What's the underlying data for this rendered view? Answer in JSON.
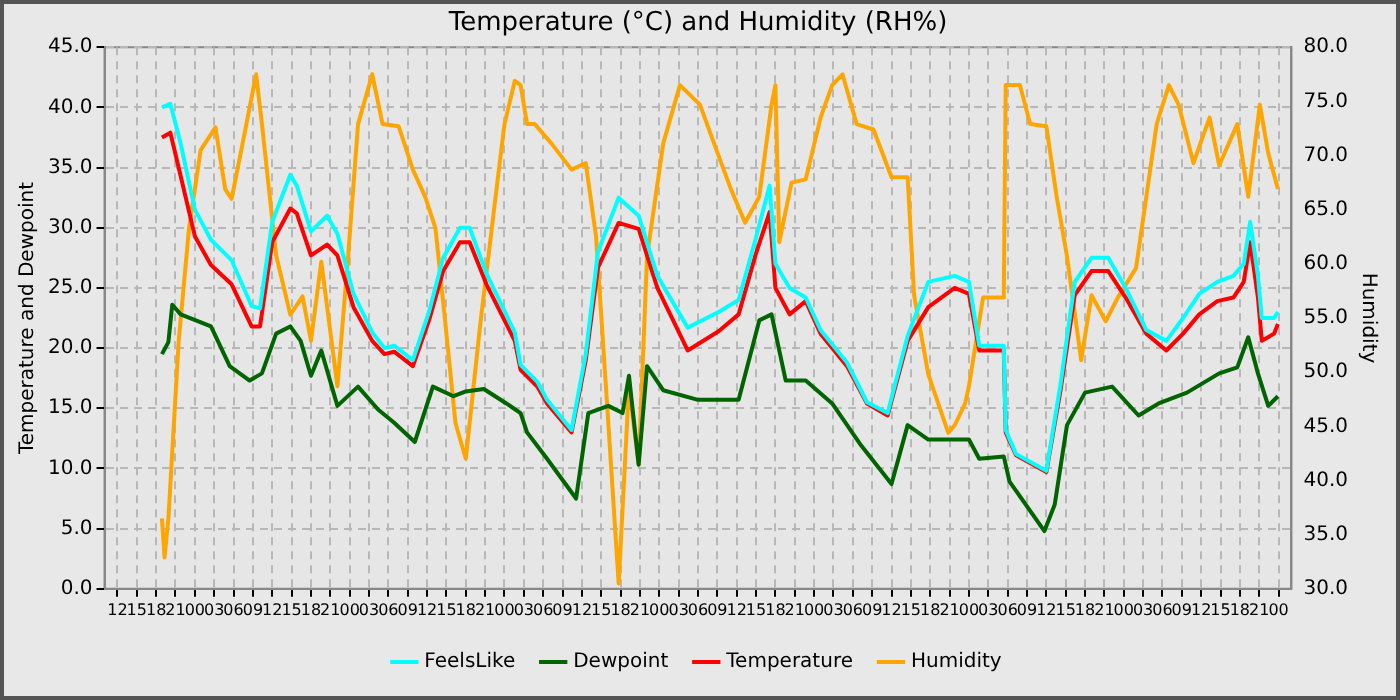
{
  "chart_data": {
    "type": "line",
    "title": "Temperature (°C) and Humidity (RH%)",
    "ylabel": "Temperature and Dewpoint",
    "y2label": "Humidity",
    "x": [
      18.9,
      20.2,
      21.8,
      24.0,
      26.5,
      29.7,
      32.8,
      34.1,
      36.0,
      38.8,
      39.8,
      42.0,
      44.5,
      46.1,
      48.6,
      51.5,
      53.4,
      54.9,
      57.8,
      60.3,
      62.5,
      65.1,
      66.6,
      69.2,
      73.6,
      74.5,
      77.1,
      78.6,
      82.4,
      84.6,
      86.5,
      89.7,
      92.8,
      95.7,
      100.4,
      105.2,
      108.3,
      110.9,
      113.1,
      114.0,
      116.2,
      118.7,
      121.0,
      125.1,
      128.2,
      131.4,
      134.5,
      137.7,
      141.8,
      144.0,
      145.6,
      149.4,
      149.7,
      151.3,
      156.0,
      158.2,
      160.4,
      163.0,
      165.6,
      168.3,
      171.5,
      174.6,
      177.2,
      179.7,
      182.5,
      185.0,
      186.6,
      187.6,
      188.8,
      189.4,
      191.3,
      191.9
    ],
    "series": [
      {
        "name": "FeelsLike",
        "color": "#00ffff",
        "values": [
          40.0,
          40.3,
          37,
          31.5,
          29,
          27.3,
          23.5,
          23.3,
          30.5,
          34.4,
          33.5,
          29.7,
          31,
          29.5,
          24.5,
          21.3,
          20,
          20.2,
          19,
          23,
          27.5,
          30,
          30,
          26.2,
          21.3,
          18.6,
          17.2,
          15.7,
          13.2,
          19.5,
          28,
          32.5,
          31,
          26,
          21.7,
          23,
          24,
          29,
          33.5,
          27,
          25,
          24.2,
          21.5,
          18.8,
          15.5,
          14.6,
          21,
          25.5,
          26,
          25.5,
          20.2,
          20.2,
          13.2,
          11.2,
          9.8,
          17,
          25.5,
          27.5,
          27.5,
          25,
          21.5,
          20.6,
          22.5,
          24.5,
          25.5,
          26,
          27,
          30.5,
          26,
          22.5,
          22.5,
          23
        ]
      },
      {
        "name": "Dewpoint",
        "color": "#006400",
        "x": [
          18.9,
          19.9,
          20.5,
          21.8,
          26.5,
          29.4,
          32.5,
          34.4,
          36.6,
          38.8,
          40.4,
          42.0,
          43.6,
          46.1,
          49.3,
          52.4,
          54.9,
          58.1,
          60.9,
          64.1,
          66.0,
          68.8,
          72.3,
          74.5,
          75.5,
          78.6,
          83.1,
          85.0,
          88.1,
          90.3,
          91.3,
          92.8,
          94.1,
          96.6,
          102.0,
          108.3,
          111.5,
          113.4,
          115.6,
          118.7,
          122.8,
          127.3,
          132.0,
          134.5,
          137.7,
          144.0,
          145.6,
          149.4,
          150.3,
          155.7,
          157.3,
          159.2,
          162.0,
          166.2,
          170.3,
          173.4,
          177.8,
          182.8,
          185.6,
          187.3,
          188.8,
          190.4,
          191.9
        ],
        "values": [
          19.5,
          20.5,
          23.6,
          22.8,
          21.8,
          18.5,
          17.3,
          17.9,
          21.2,
          21.8,
          20.6,
          17.7,
          19.8,
          15.2,
          16.8,
          14.9,
          13.8,
          12.2,
          16.8,
          16.0,
          16.4,
          16.6,
          15.4,
          14.6,
          13.0,
          10.8,
          7.5,
          14.6,
          15.2,
          14.6,
          17.7,
          10.3,
          18.5,
          16.5,
          15.7,
          15.7,
          22.3,
          22.8,
          17.3,
          17.3,
          15.4,
          11.9,
          8.7,
          13.6,
          12.4,
          12.4,
          10.8,
          11.0,
          8.9,
          4.8,
          7.0,
          13.6,
          16.3,
          16.8,
          14.4,
          15.4,
          16.3,
          17.9,
          18.4,
          20.9,
          17.9,
          15.2,
          16.0
        ]
      },
      {
        "name": "Temperature",
        "color": "#ff0000",
        "values": [
          37.5,
          37.9,
          34.3,
          29.3,
          26.9,
          25.3,
          21.8,
          21.8,
          28.8,
          31.6,
          31.2,
          27.7,
          28.6,
          27.7,
          23.4,
          20.6,
          19.5,
          19.7,
          18.5,
          22.3,
          26.4,
          28.8,
          28.8,
          25.3,
          20.6,
          18.2,
          16.8,
          15.4,
          13.0,
          19.0,
          26.7,
          30.4,
          29.9,
          25.0,
          19.8,
          21.4,
          22.8,
          27.7,
          31.3,
          25.0,
          22.8,
          23.9,
          21.2,
          18.5,
          15.4,
          14.4,
          20.6,
          23.4,
          25.0,
          24.5,
          19.8,
          19.8,
          13.0,
          11.1,
          9.7,
          16.5,
          24.4,
          26.4,
          26.4,
          24.2,
          21.2,
          19.8,
          21.2,
          22.8,
          23.9,
          24.2,
          25.5,
          28.8,
          24.2,
          20.6,
          21.2,
          22.0
        ]
      },
      {
        "name": "Humidity",
        "color": "#ffa500",
        "axis": "y2",
        "x": [
          18.9,
          19.3,
          19.9,
          21.5,
          23.1,
          24.9,
          27.2,
          28.7,
          29.7,
          30.9,
          33.5,
          34.4,
          36.6,
          38.8,
          40.7,
          42.0,
          43.6,
          46.1,
          47.7,
          49.3,
          51.5,
          53.1,
          55.6,
          57.8,
          59.7,
          61.3,
          62.8,
          64.4,
          66.0,
          68.2,
          70.4,
          72.0,
          73.6,
          74.5,
          75.5,
          76.7,
          79.3,
          82.4,
          84.6,
          86.2,
          87.8,
          89.7,
          91.3,
          92.8,
          94.1,
          96.6,
          99.2,
          102.3,
          104.5,
          107.1,
          109.3,
          111.5,
          113.4,
          114.0,
          114.6,
          116.5,
          118.7,
          121.0,
          122.8,
          124.4,
          126.6,
          129.2,
          132.0,
          134.5,
          135.5,
          137.7,
          140.8,
          141.8,
          143.4,
          144.0,
          145.6,
          146.2,
          149.4,
          149.7,
          151.9,
          153.5,
          156.0,
          157.6,
          159.2,
          161.4,
          163.0,
          165.2,
          167.1,
          169.9,
          171.5,
          173.1,
          175.0,
          176.5,
          178.8,
          181.3,
          182.8,
          185.6,
          187.3,
          189.1,
          190.4,
          191.9
        ],
        "values": [
          36.5,
          32.9,
          36.5,
          52.9,
          63.3,
          70.5,
          72.6,
          66.9,
          66,
          69.6,
          77.5,
          72.9,
          60.8,
          55.3,
          57,
          52.9,
          60.2,
          48.7,
          60.2,
          72.9,
          77.5,
          72.9,
          72.7,
          68.7,
          66.2,
          63.3,
          54.7,
          45.3,
          42,
          54.2,
          65.1,
          72.9,
          76.9,
          76.5,
          72.9,
          72.9,
          71.1,
          68.7,
          69.3,
          62.5,
          48,
          30.5,
          48.7,
          41.5,
          60.7,
          71.1,
          76.5,
          74.7,
          71.1,
          66.9,
          63.8,
          66.2,
          74.7,
          76.5,
          62,
          67.5,
          67.8,
          73.5,
          76.5,
          77.5,
          72.9,
          72.4,
          68,
          68,
          57.1,
          49.8,
          44.4,
          45.1,
          47.1,
          48.7,
          54.7,
          56.9,
          56.9,
          76.5,
          76.5,
          72.9,
          72.7,
          66.2,
          60.7,
          51.1,
          57.1,
          54.7,
          56.9,
          59.6,
          66.2,
          72.9,
          76.5,
          74.7,
          69.3,
          73.5,
          69.1,
          72.9,
          66.2,
          74.7,
          70.2,
          66.9
        ]
      }
    ],
    "xlim": [
      10,
      194
    ],
    "xticks": [
      {
        "value": 12,
        "label": "12"
      },
      {
        "value": 15,
        "label": "15"
      },
      {
        "value": 18,
        "label": "18"
      },
      {
        "value": 21,
        "label": "21"
      },
      {
        "value": 24,
        "label": "00"
      },
      {
        "value": 27,
        "label": "03"
      },
      {
        "value": 30,
        "label": "06"
      },
      {
        "value": 33,
        "label": "09"
      },
      {
        "value": 36,
        "label": "12"
      },
      {
        "value": 39,
        "label": "15"
      },
      {
        "value": 42,
        "label": "18"
      },
      {
        "value": 45,
        "label": "21"
      },
      {
        "value": 48,
        "label": "00"
      },
      {
        "value": 51,
        "label": "03"
      },
      {
        "value": 54,
        "label": "06"
      },
      {
        "value": 57,
        "label": "09"
      },
      {
        "value": 60,
        "label": "12"
      },
      {
        "value": 63,
        "label": "15"
      },
      {
        "value": 66,
        "label": "18"
      },
      {
        "value": 69,
        "label": "21"
      },
      {
        "value": 72,
        "label": "00"
      },
      {
        "value": 75,
        "label": "03"
      },
      {
        "value": 78,
        "label": "06"
      },
      {
        "value": 81,
        "label": "09"
      },
      {
        "value": 84,
        "label": "12"
      },
      {
        "value": 87,
        "label": "15"
      },
      {
        "value": 90,
        "label": "18"
      },
      {
        "value": 93,
        "label": "21"
      },
      {
        "value": 96,
        "label": "00"
      },
      {
        "value": 99,
        "label": "03"
      },
      {
        "value": 102,
        "label": "06"
      },
      {
        "value": 105,
        "label": "09"
      },
      {
        "value": 108,
        "label": "12"
      },
      {
        "value": 111,
        "label": "15"
      },
      {
        "value": 114,
        "label": "18"
      },
      {
        "value": 117,
        "label": "21"
      },
      {
        "value": 120,
        "label": "00"
      },
      {
        "value": 123,
        "label": "03"
      },
      {
        "value": 126,
        "label": "06"
      },
      {
        "value": 129,
        "label": "09"
      },
      {
        "value": 132,
        "label": "12"
      },
      {
        "value": 135,
        "label": "15"
      },
      {
        "value": 138,
        "label": "18"
      },
      {
        "value": 141,
        "label": "21"
      },
      {
        "value": 144,
        "label": "00"
      },
      {
        "value": 147,
        "label": "03"
      },
      {
        "value": 150,
        "label": "06"
      },
      {
        "value": 153,
        "label": "09"
      },
      {
        "value": 156,
        "label": "12"
      },
      {
        "value": 159,
        "label": "15"
      },
      {
        "value": 162,
        "label": "18"
      },
      {
        "value": 165,
        "label": "21"
      },
      {
        "value": 168,
        "label": "00"
      },
      {
        "value": 171,
        "label": "03"
      },
      {
        "value": 174,
        "label": "06"
      },
      {
        "value": 177,
        "label": "09"
      },
      {
        "value": 180,
        "label": "12"
      },
      {
        "value": 183,
        "label": "15"
      },
      {
        "value": 186,
        "label": "18"
      },
      {
        "value": 189,
        "label": "21"
      },
      {
        "value": 192,
        "label": "00"
      }
    ],
    "ylim": [
      0,
      45
    ],
    "yticks": [
      {
        "value": 0,
        "label": "0.0"
      },
      {
        "value": 5,
        "label": "5.0"
      },
      {
        "value": 10,
        "label": "10.0"
      },
      {
        "value": 15,
        "label": "15.0"
      },
      {
        "value": 20,
        "label": "20.0"
      },
      {
        "value": 25,
        "label": "25.0"
      },
      {
        "value": 30,
        "label": "30.0"
      },
      {
        "value": 35,
        "label": "35.0"
      },
      {
        "value": 40,
        "label": "40.0"
      },
      {
        "value": 45,
        "label": "45.0"
      }
    ],
    "y2lim": [
      30,
      80
    ],
    "y2ticks": [
      {
        "value": 30,
        "label": "30.0"
      },
      {
        "value": 35,
        "label": "35.0"
      },
      {
        "value": 40,
        "label": "40.0"
      },
      {
        "value": 45,
        "label": "45.0"
      },
      {
        "value": 50,
        "label": "50.0"
      },
      {
        "value": 55,
        "label": "55.0"
      },
      {
        "value": 60,
        "label": "60.0"
      },
      {
        "value": 65,
        "label": "65.0"
      },
      {
        "value": 70,
        "label": "70.0"
      },
      {
        "value": 75,
        "label": "75.0"
      },
      {
        "value": 80,
        "label": "80.0"
      }
    ],
    "grid": true,
    "legend": "bottom",
    "marker": "none",
    "line_style": "solid"
  }
}
